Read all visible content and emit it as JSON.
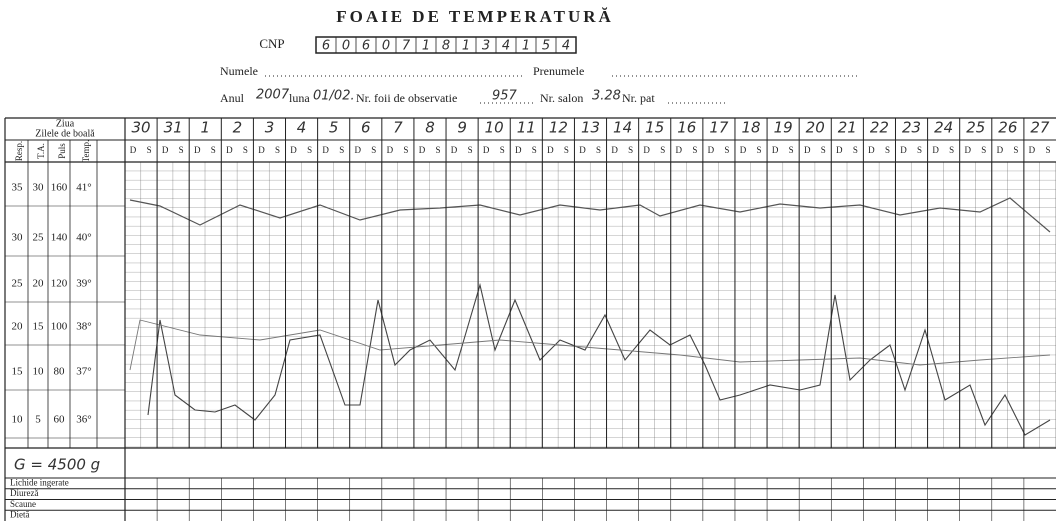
{
  "header": {
    "title": "FOAIE DE TEMPERATURĂ",
    "cnp_label": "CNP",
    "cnp_digits": [
      "6",
      "0",
      "6",
      "0",
      "7",
      "1",
      "8",
      "1",
      "3",
      "4",
      "1",
      "5",
      "4"
    ],
    "name_label": "Numele",
    "surname_label": "Prenumele",
    "year_label": "Anul",
    "year": "2007",
    "month_label": "luna",
    "month": "01/02.",
    "sheet_label": "Nr. foii de observatie",
    "sheet_number": "957",
    "room_label": "Nr. salon",
    "room": "3.28",
    "bed_label": "Nr. pat"
  },
  "table": {
    "day_label": "Ziua",
    "illness_days_label": "Zilele de boală",
    "columns": [
      "Resp.",
      "T.A.",
      "Puls",
      "Temp."
    ],
    "scale_rows": [
      [
        "35",
        "30",
        "160",
        "41°"
      ],
      [
        "30",
        "25",
        "140",
        "40°"
      ],
      [
        "25",
        "20",
        "120",
        "39°"
      ],
      [
        "20",
        "15",
        "100",
        "38°"
      ],
      [
        "15",
        "10",
        "80",
        "37°"
      ],
      [
        "10",
        "5",
        "60",
        "36°"
      ]
    ],
    "days": [
      "30",
      "31",
      "1",
      "2",
      "3",
      "4",
      "5",
      "6",
      "7",
      "8",
      "9",
      "10",
      "11",
      "12",
      "13",
      "14",
      "15",
      "16",
      "17",
      "18",
      "19",
      "20",
      "21",
      "22",
      "23",
      "24",
      "25",
      "26",
      "27"
    ],
    "shift_labels": [
      "D",
      "S"
    ],
    "weight_note": "G = 4500 g",
    "footer_rows": [
      "Lichide ingerate",
      "Diureză",
      "Scaune",
      "Dietă"
    ]
  }
}
